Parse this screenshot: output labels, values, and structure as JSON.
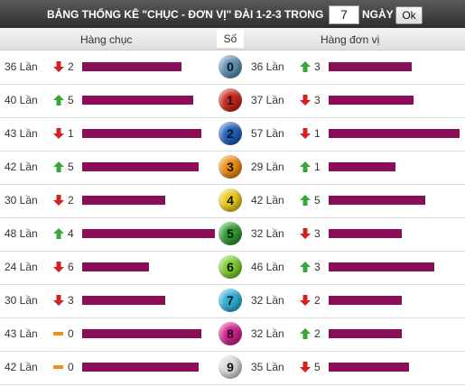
{
  "header": {
    "title": "BẢNG THỐNG KÊ \"CHỤC - ĐƠN VỊ\" ĐÀI 1-2-3 TRONG",
    "days": "7",
    "days_unit": "NGÀY",
    "button": "Ok"
  },
  "columns": {
    "left": "Hàng chục",
    "middle": "Số",
    "right": "Hàng đơn vị"
  },
  "rows": [
    {
      "digit": "0",
      "ball_color": "#5a8fb0",
      "left": {
        "count": 36,
        "count_label": "36 Lần",
        "trend": "down",
        "change": 2
      },
      "right": {
        "count": 36,
        "count_label": "36 Lần",
        "trend": "up",
        "change": 3
      }
    },
    {
      "digit": "1",
      "ball_color": "#c8241c",
      "left": {
        "count": 40,
        "count_label": "40 Lần",
        "trend": "up",
        "change": 5
      },
      "right": {
        "count": 37,
        "count_label": "37 Lần",
        "trend": "down",
        "change": 3
      }
    },
    {
      "digit": "2",
      "ball_color": "#1f5fb8",
      "left": {
        "count": 43,
        "count_label": "43 Lần",
        "trend": "down",
        "change": 1
      },
      "right": {
        "count": 57,
        "count_label": "57 Lần",
        "trend": "down",
        "change": 1
      }
    },
    {
      "digit": "3",
      "ball_color": "#e88a10",
      "left": {
        "count": 42,
        "count_label": "42 Lần",
        "trend": "up",
        "change": 5
      },
      "right": {
        "count": 29,
        "count_label": "29 Lần",
        "trend": "up",
        "change": 1
      }
    },
    {
      "digit": "4",
      "ball_color": "#e8c81a",
      "left": {
        "count": 30,
        "count_label": "30 Lần",
        "trend": "down",
        "change": 2
      },
      "right": {
        "count": 42,
        "count_label": "42 Lần",
        "trend": "up",
        "change": 5
      }
    },
    {
      "digit": "5",
      "ball_color": "#2e9a2e",
      "left": {
        "count": 48,
        "count_label": "48 Lần",
        "trend": "up",
        "change": 4
      },
      "right": {
        "count": 32,
        "count_label": "32 Lần",
        "trend": "down",
        "change": 3
      }
    },
    {
      "digit": "6",
      "ball_color": "#7ccc2a",
      "left": {
        "count": 24,
        "count_label": "24 Lần",
        "trend": "down",
        "change": 6
      },
      "right": {
        "count": 46,
        "count_label": "46 Lần",
        "trend": "up",
        "change": 3
      }
    },
    {
      "digit": "7",
      "ball_color": "#2aaed8",
      "left": {
        "count": 30,
        "count_label": "30 Lần",
        "trend": "down",
        "change": 3
      },
      "right": {
        "count": 32,
        "count_label": "32 Lần",
        "trend": "down",
        "change": 2
      }
    },
    {
      "digit": "8",
      "ball_color": "#d0208e",
      "left": {
        "count": 43,
        "count_label": "43 Lần",
        "trend": "same",
        "change": 0
      },
      "right": {
        "count": 32,
        "count_label": "32 Lần",
        "trend": "up",
        "change": 2
      }
    },
    {
      "digit": "9",
      "ball_color": "#d8d8d8",
      "left": {
        "count": 42,
        "count_label": "42 Lần",
        "trend": "same",
        "change": 0
      },
      "right": {
        "count": 35,
        "count_label": "35 Lần",
        "trend": "down",
        "change": 5
      }
    }
  ]
}
